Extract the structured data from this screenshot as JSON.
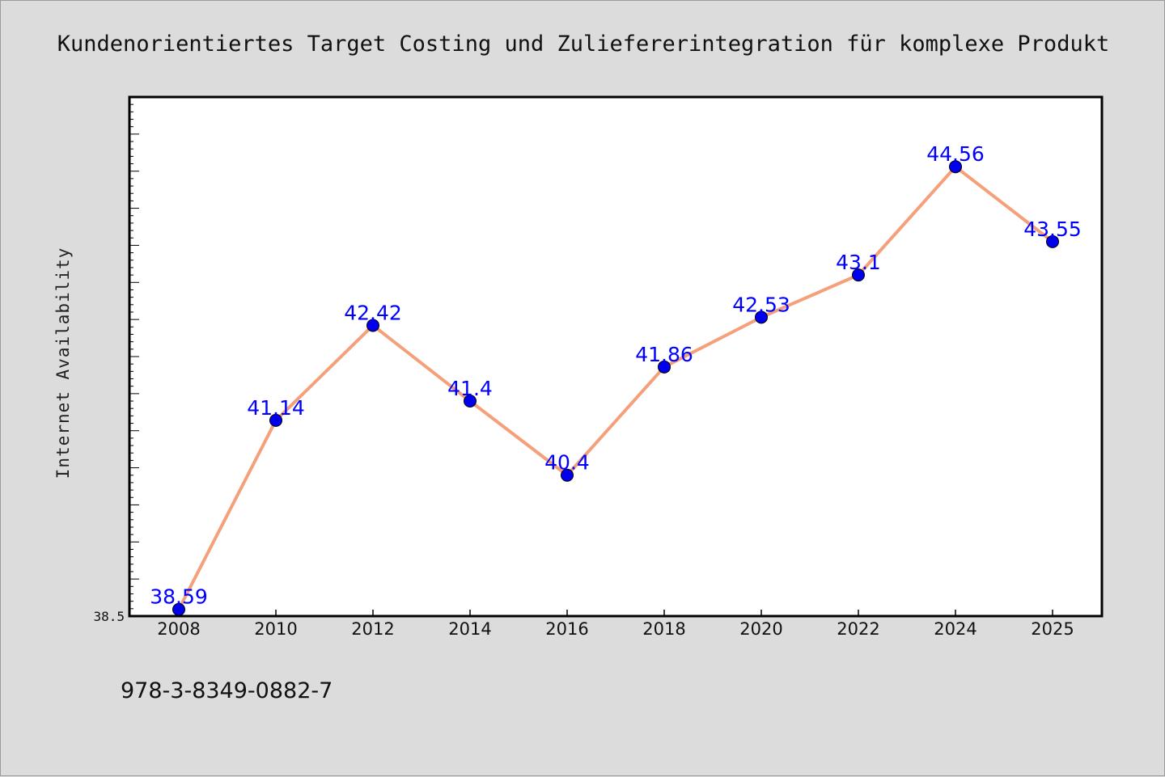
{
  "chart_data": {
    "type": "line",
    "title": "Kundenorientiertes Target Costing und Zuliefererintegration für komplexe Produkt",
    "xlabel": "",
    "ylabel": "Internet Availability",
    "categories": [
      "2008",
      "2010",
      "2012",
      "2014",
      "2016",
      "2018",
      "2020",
      "2022",
      "2024",
      "2025"
    ],
    "series": [
      {
        "values": [
          38.59,
          41.14,
          42.42,
          41.4,
          40.4,
          41.86,
          42.53,
          43.1,
          44.56,
          43.55
        ],
        "labels": [
          "38.59",
          "41.14",
          "42.42",
          "41.4",
          "40.4",
          "41.86",
          "42.53",
          "43.1",
          "44.56",
          "43.55"
        ],
        "line_color": "#f4a07a",
        "marker_color": "#0000ee"
      }
    ],
    "ylim": [
      38.5,
      45.5
    ],
    "yticks_labeled": [
      "38.5"
    ],
    "grid": false,
    "legend": "none"
  },
  "footer": {
    "isbn": "978-3-8349-0882-7"
  }
}
